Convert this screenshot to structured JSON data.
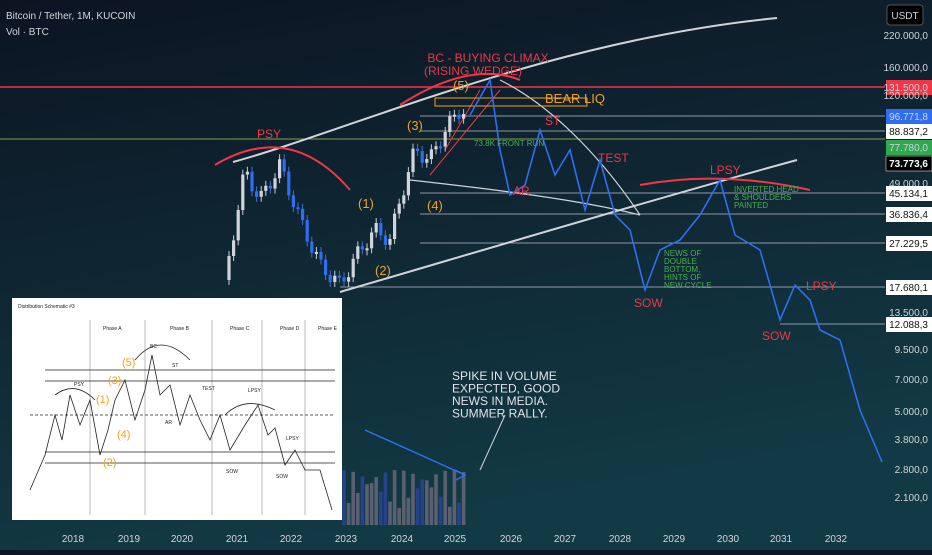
{
  "header": {
    "symbol": "Bitcoin / Tether, 1M, KUCOIN",
    "indicator": "Vol · BTC",
    "currency": "USDT"
  },
  "price_axis": [
    "220.000,0",
    "160.000,0",
    "131.500,0",
    "120.000,0",
    "96.771,8",
    "88.837,2",
    "77.780,0",
    "73.773,6",
    "49.000,0",
    "45.134,1",
    "36.836,4",
    "27.229,5",
    "17.680,1",
    "13.500,0",
    "12.088,3",
    "9.500,0",
    "7.000,0",
    "5.000,0",
    "3.800,0",
    "2.800,0",
    "2.100,0"
  ],
  "time_axis": [
    "2018",
    "2019",
    "2020",
    "2021",
    "2022",
    "2023",
    "2024",
    "2025",
    "2026",
    "2027",
    "2028",
    "2029",
    "2030",
    "2031",
    "2032"
  ],
  "annotations": {
    "bc": [
      "BC - BUYING CLIMAX",
      "(RISING WEDGE)"
    ],
    "bear_liq": "BEAR LIQ",
    "st": "ST",
    "test": "TEST",
    "lpsy_top": "LPSY",
    "psy": "PSY",
    "waves": [
      "(1)",
      "(2)",
      "(3)",
      "(4)",
      "(5)"
    ],
    "front_run": "73.8K FRONT RUN",
    "ar": "AR",
    "sow1": "SOW",
    "sow2": "SOW",
    "lpsy2": "LPSY",
    "inverted": [
      "INVERTED HEAD",
      "& SHOULDERS",
      "PAINTED"
    ],
    "news": [
      "NEWS OF",
      "DOUBLE",
      "BOTTOM,",
      "HINTS OF",
      "NEW CYCLE"
    ],
    "spike": [
      "SPIKE IN VOLUME",
      "EXPECTED, GOOD",
      "NEWS IN MEDIA.",
      "SUMMER RALLY."
    ]
  },
  "inset": {
    "title": "Distribution Schematic #3",
    "phases": [
      "Phase A",
      "Phase B",
      "Phase C",
      "Phase D",
      "Phase E"
    ],
    "labels": {
      "psy": "PSY",
      "bc": "BC",
      "st": "ST",
      "ar": "AR",
      "test": "TEST",
      "lpsy": "LPSY",
      "lpsy2": "LPSY",
      "sow": "SOW",
      "sow2": "SOW"
    },
    "waves": [
      "(1)",
      "(2)",
      "(3)",
      "(4)",
      "(5)"
    ]
  }
}
